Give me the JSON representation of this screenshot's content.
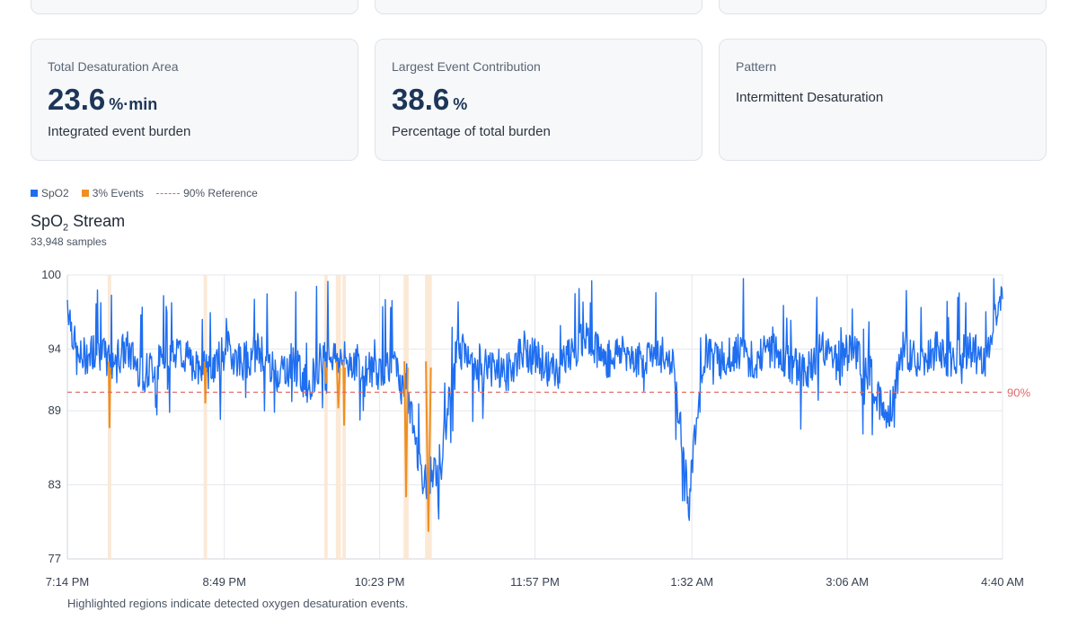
{
  "cards": [
    {
      "label": "Total Desaturation Area",
      "value": "23.6",
      "unit": "%·min",
      "sub": "Integrated event burden"
    },
    {
      "label": "Largest Event Contribution",
      "value": "38.6",
      "unit": "%",
      "sub": "Percentage of total burden"
    },
    {
      "label": "Pattern",
      "text": "Intermittent Desaturation"
    }
  ],
  "legend": {
    "spo2": "SpO2",
    "events": "3% Events",
    "reference": "90% Reference"
  },
  "colors": {
    "spo2": "#1f6ef0",
    "events": "#ee8f23",
    "reference": "#e06a6a",
    "event_band": "#fbe7d2"
  },
  "chart": {
    "title_main": "SpO",
    "title_sub": "2",
    "title_rest": " Stream",
    "samples": "33,948 samples",
    "note": "Highlighted regions indicate detected oxygen desaturation events.",
    "ref_label": "90%"
  },
  "chart_data": {
    "type": "line",
    "title": "SpO₂ Stream",
    "x_unit": "clock time",
    "x_ticks": [
      "7:14 PM",
      "8:49 PM",
      "10:23 PM",
      "11:57 PM",
      "1:32 AM",
      "3:06 AM",
      "4:40 AM"
    ],
    "x_range": [
      "7:14 PM",
      "4:40 AM"
    ],
    "y_ticks": [
      100,
      94,
      89,
      83,
      77
    ],
    "ylim": [
      77,
      100
    ],
    "reference_line": 90.5,
    "grid": true,
    "legend_position": "top-left",
    "series": [
      {
        "name": "SpO2",
        "x": [
          "7:14 PM",
          "7:20 PM",
          "7:30 PM",
          "7:40 PM",
          "7:50 PM",
          "8:00 PM",
          "8:10 PM",
          "8:20 PM",
          "8:30 PM",
          "8:40 PM",
          "8:50 PM",
          "9:00 PM",
          "9:10 PM",
          "9:20 PM",
          "9:30 PM",
          "9:40 PM",
          "9:50 PM",
          "10:00 PM",
          "10:10 PM",
          "10:20 PM",
          "10:30 PM",
          "10:40 PM",
          "10:50 PM",
          "11:00 PM",
          "11:10 PM",
          "11:20 PM",
          "11:30 PM",
          "11:40 PM",
          "11:50 PM",
          "12:00 AM",
          "12:10 AM",
          "12:20 AM",
          "12:30 AM",
          "12:40 AM",
          "12:50 AM",
          "1:00 AM",
          "1:10 AM",
          "1:20 AM",
          "1:30 AM",
          "1:40 AM",
          "1:50 AM",
          "2:00 AM",
          "2:10 AM",
          "2:20 AM",
          "2:30 AM",
          "2:40 AM",
          "2:50 AM",
          "3:00 AM",
          "3:10 AM",
          "3:20 AM",
          "3:30 AM",
          "3:40 AM",
          "3:50 AM",
          "4:00 AM",
          "4:10 AM",
          "4:20 AM",
          "4:30 AM",
          "4:40 AM"
        ],
        "values": [
          98,
          93,
          94,
          93,
          94,
          92,
          93,
          94,
          93,
          92,
          94,
          93,
          94,
          92,
          93,
          91,
          94,
          93,
          93,
          92,
          93,
          90,
          83,
          85,
          94,
          93,
          93,
          92,
          94,
          93,
          92,
          94,
          95,
          93,
          94,
          93,
          94,
          93,
          82,
          94,
          93,
          94,
          93,
          94,
          93,
          92,
          94,
          93,
          94,
          92,
          88,
          94,
          93,
          94,
          93,
          94,
          93,
          99
        ]
      }
    ],
    "events": [
      {
        "start": "7:39 PM",
        "end": "7:40 PM",
        "min": 87.6
      },
      {
        "start": "8:37 PM",
        "end": "8:38 PM",
        "min": 89.6
      },
      {
        "start": "9:50 PM",
        "end": "9:51 PM",
        "min": 91.2
      },
      {
        "start": "9:57 PM",
        "end": "9:59 PM",
        "min": 89.2
      },
      {
        "start": "10:01 PM",
        "end": "10:02 PM",
        "min": 87.8
      },
      {
        "start": "10:38 PM",
        "end": "10:40 PM",
        "min": 82.0
      },
      {
        "start": "10:51 PM",
        "end": "10:54 PM",
        "min": 79.2
      }
    ]
  }
}
